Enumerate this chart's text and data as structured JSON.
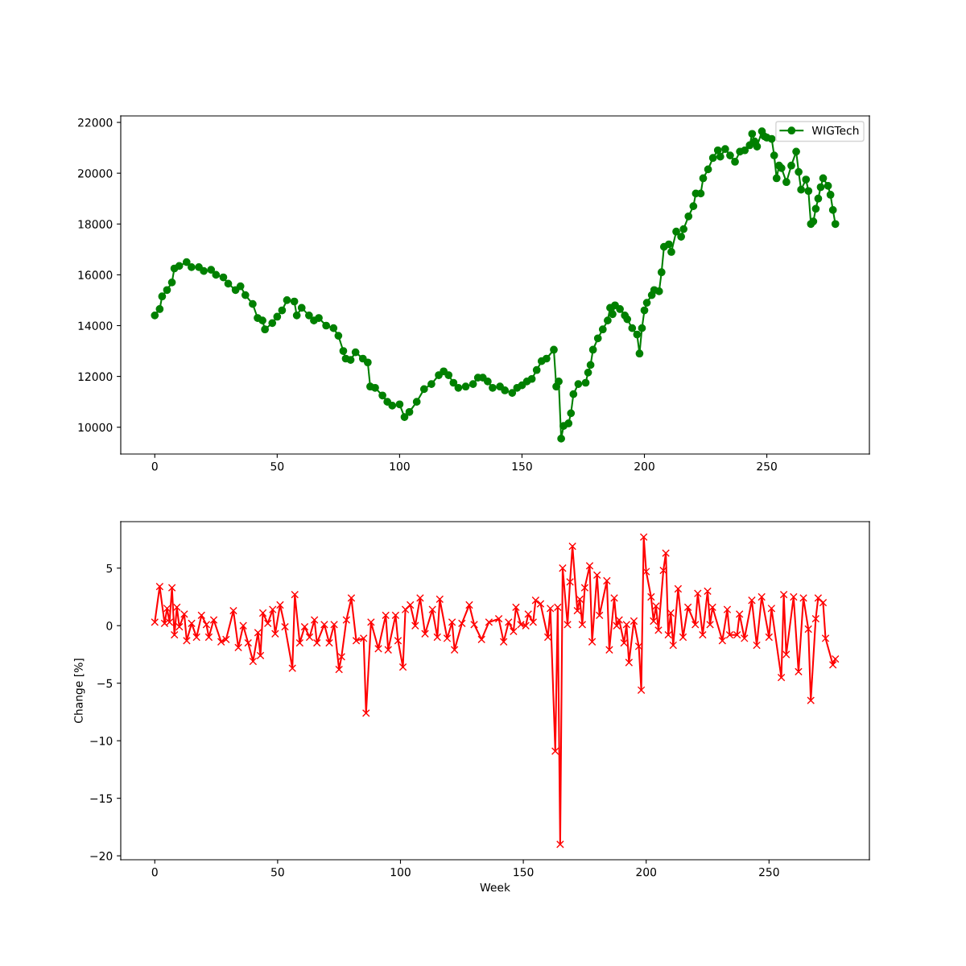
{
  "chart_data": [
    {
      "type": "line",
      "xlim": [
        -13.9,
        291.9
      ],
      "ylim": [
        8945,
        22255
      ],
      "xticks": [
        0,
        50,
        100,
        150,
        200,
        250
      ],
      "yticks": [
        10000,
        12000,
        14000,
        16000,
        18000,
        20000,
        22000
      ],
      "legend": "top right",
      "marker": "circle",
      "line_style": "solid",
      "grid": false,
      "series": [
        {
          "name": "WIGTech",
          "color": "#008000",
          "x": [
            0,
            2,
            3,
            5,
            7,
            8,
            10,
            13,
            15,
            18,
            20,
            23,
            25,
            28,
            30,
            33,
            35,
            37,
            40,
            42,
            44,
            45,
            48,
            50,
            52,
            54,
            57,
            58,
            60,
            63,
            65,
            67,
            70,
            73,
            75,
            77,
            78,
            80,
            82,
            85,
            87,
            88,
            90,
            93,
            95,
            97,
            100,
            102,
            104,
            107,
            110,
            113,
            116,
            118,
            120,
            122,
            124,
            127,
            130,
            132,
            134,
            136,
            138,
            141,
            143,
            146,
            148,
            150,
            152,
            154,
            156,
            158,
            160,
            163,
            164,
            165,
            166,
            167,
            169,
            170,
            171,
            173,
            176,
            177,
            178,
            179,
            181,
            183,
            185,
            186,
            187,
            188,
            190,
            192,
            193,
            195,
            197,
            198,
            199,
            200,
            201,
            203,
            204,
            206,
            207,
            208,
            210,
            211,
            213,
            215,
            216,
            218,
            220,
            221,
            223,
            224,
            226,
            228,
            230,
            231,
            233,
            235,
            237,
            239,
            241,
            243,
            244,
            245,
            246,
            248,
            249,
            250,
            252,
            253,
            254,
            255,
            256,
            258,
            260,
            262,
            263,
            264,
            266,
            267,
            268,
            269,
            270,
            271,
            272,
            273,
            275,
            276,
            277,
            278
          ],
          "values": [
            14400,
            14650,
            15150,
            15400,
            15700,
            16250,
            16350,
            16500,
            16300,
            16300,
            16150,
            16200,
            16000,
            15900,
            15650,
            15400,
            15550,
            15200,
            14850,
            14300,
            14200,
            13850,
            14100,
            14350,
            14600,
            15000,
            14950,
            14400,
            14700,
            14400,
            14200,
            14300,
            14000,
            13900,
            13600,
            13000,
            12700,
            12650,
            12950,
            12700,
            12550,
            11600,
            11550,
            11250,
            11000,
            10850,
            10900,
            10400,
            10600,
            11000,
            11500,
            11700,
            12050,
            12200,
            12050,
            11750,
            11550,
            11600,
            11700,
            11950,
            11950,
            11800,
            11550,
            11600,
            11450,
            11350,
            11550,
            11650,
            11800,
            11900,
            12250,
            12600,
            12700,
            13050,
            11600,
            11800,
            9550,
            10050,
            10150,
            10550,
            11300,
            11700,
            11750,
            12150,
            12450,
            13050,
            13500,
            13850,
            14200,
            14700,
            14450,
            14800,
            14650,
            14400,
            14250,
            13900,
            13650,
            12900,
            13900,
            14600,
            14900,
            15200,
            15400,
            15350,
            16100,
            17100,
            17200,
            16900,
            17700,
            17500,
            17800,
            18300,
            18700,
            19200,
            19200,
            19800,
            20150,
            20600,
            20900,
            20650,
            20950,
            20700,
            20450,
            20850,
            20900,
            21100,
            21550,
            21250,
            21050,
            21650,
            21450,
            21400,
            21350,
            20700,
            19800,
            20300,
            20200,
            19650,
            20300,
            20850,
            20050,
            19350,
            19750,
            19300,
            18000,
            18100,
            18600,
            19000,
            19450,
            19800,
            19500,
            19150,
            18550,
            18000
          ]
        }
      ]
    },
    {
      "type": "line",
      "xlabel": "Week",
      "ylabel": "Change [%]",
      "xlim": [
        -13.85,
        290.85
      ],
      "ylim": [
        -20.34,
        9.04
      ],
      "xticks": [
        0,
        50,
        100,
        150,
        200,
        250
      ],
      "yticks": [
        {
          "value": -20,
          "label": "−20"
        },
        {
          "value": -15,
          "label": "−15"
        },
        {
          "value": -10,
          "label": "−10"
        },
        {
          "value": -5,
          "label": "−5"
        },
        0,
        5
      ],
      "legend": false,
      "marker": "cross",
      "line_style": "solid",
      "grid": false,
      "series": [
        {
          "color": "#ff0000",
          "x": [
            0,
            2,
            4,
            5,
            6,
            7,
            8,
            9,
            10,
            12,
            13,
            15,
            17,
            19,
            21,
            22,
            24,
            27,
            29,
            32,
            34,
            36,
            38,
            40,
            42,
            43,
            44,
            46,
            48,
            49,
            51,
            53,
            56,
            57,
            59,
            61,
            63,
            65,
            66,
            69,
            71,
            73,
            75,
            76,
            78,
            80,
            82,
            85,
            86,
            88,
            91,
            94,
            95,
            98,
            99,
            101,
            102,
            104,
            106,
            108,
            110,
            113,
            115,
            116,
            119,
            121,
            122,
            125,
            128,
            130,
            133,
            136,
            140,
            142,
            144,
            146,
            147,
            149,
            151,
            152,
            154,
            155,
            157,
            160,
            161,
            163,
            164,
            165,
            166,
            168,
            169,
            170,
            172,
            173,
            174,
            175,
            177,
            178,
            180,
            181,
            184,
            185,
            187,
            188,
            189,
            191,
            192,
            193,
            195,
            197,
            198,
            199,
            200,
            202,
            203,
            204,
            205,
            207,
            208,
            209,
            210,
            211,
            213,
            215,
            217,
            220,
            221,
            223,
            225,
            226,
            227,
            231,
            233,
            234,
            237,
            238,
            240,
            243,
            245,
            247,
            250,
            251,
            255,
            256,
            257,
            260,
            262,
            264,
            266,
            267,
            269,
            270,
            272,
            273,
            276,
            277
          ],
          "values": [
            0.3,
            3.4,
            0.2,
            1.5,
            0.3,
            3.3,
            -0.8,
            1.6,
            -0.1,
            1.0,
            -1.3,
            0.2,
            -1.0,
            0.9,
            0.1,
            -1.0,
            0.5,
            -1.4,
            -1.2,
            1.3,
            -1.9,
            0,
            -1.5,
            -3.1,
            -0.6,
            -2.6,
            1.1,
            0.2,
            1.4,
            -0.7,
            1.8,
            -0.1,
            -3.7,
            2.7,
            -1.5,
            -0.1,
            -1.0,
            0.5,
            -1.5,
            0.1,
            -1.5,
            0.1,
            -3.8,
            -2.7,
            0.5,
            2.4,
            -1.3,
            -1.1,
            -7.6,
            0.3,
            -2.0,
            0.9,
            -2.1,
            0.9,
            -1.3,
            -3.6,
            1.4,
            1.8,
            0,
            2.4,
            -0.7,
            1.4,
            -1.0,
            2.3,
            -1.1,
            0.3,
            -2.1,
            0.2,
            1.8,
            0.1,
            -1.2,
            0.3,
            0.6,
            -1.4,
            0.3,
            -0.5,
            1.6,
            0.1,
            0,
            1.0,
            0.3,
            2.2,
            1.9,
            -1.0,
            1.5,
            -10.9,
            1.6,
            -19.0,
            5.0,
            0.1,
            3.8,
            6.9,
            1.3,
            2.3,
            0.1,
            3.3,
            5.2,
            -1.4,
            4.4,
            0.9,
            3.9,
            -2.1,
            2.4,
            0,
            0.5,
            -1.5,
            0.1,
            -3.2,
            0.4,
            -1.8,
            -5.6,
            7.7,
            4.7,
            2.5,
            0.4,
            1.7,
            -0.4,
            4.8,
            6.3,
            -0.8,
            1.1,
            -1.7,
            3.2,
            -1.0,
            1.6,
            0.1,
            2.8,
            -0.8,
            3.0,
            0.1,
            1.6,
            -1.3,
            1.4,
            -0.8,
            -0.8,
            1.0,
            -1.1,
            2.2,
            -1.7,
            2.5,
            -1.0,
            1.5,
            -4.5,
            2.7,
            -2.5,
            2.5,
            -4.0,
            2.4,
            -0.3,
            -6.5,
            0.6,
            2.4,
            2.0,
            -1.1,
            -3.4,
            -2.9
          ]
        }
      ]
    }
  ]
}
